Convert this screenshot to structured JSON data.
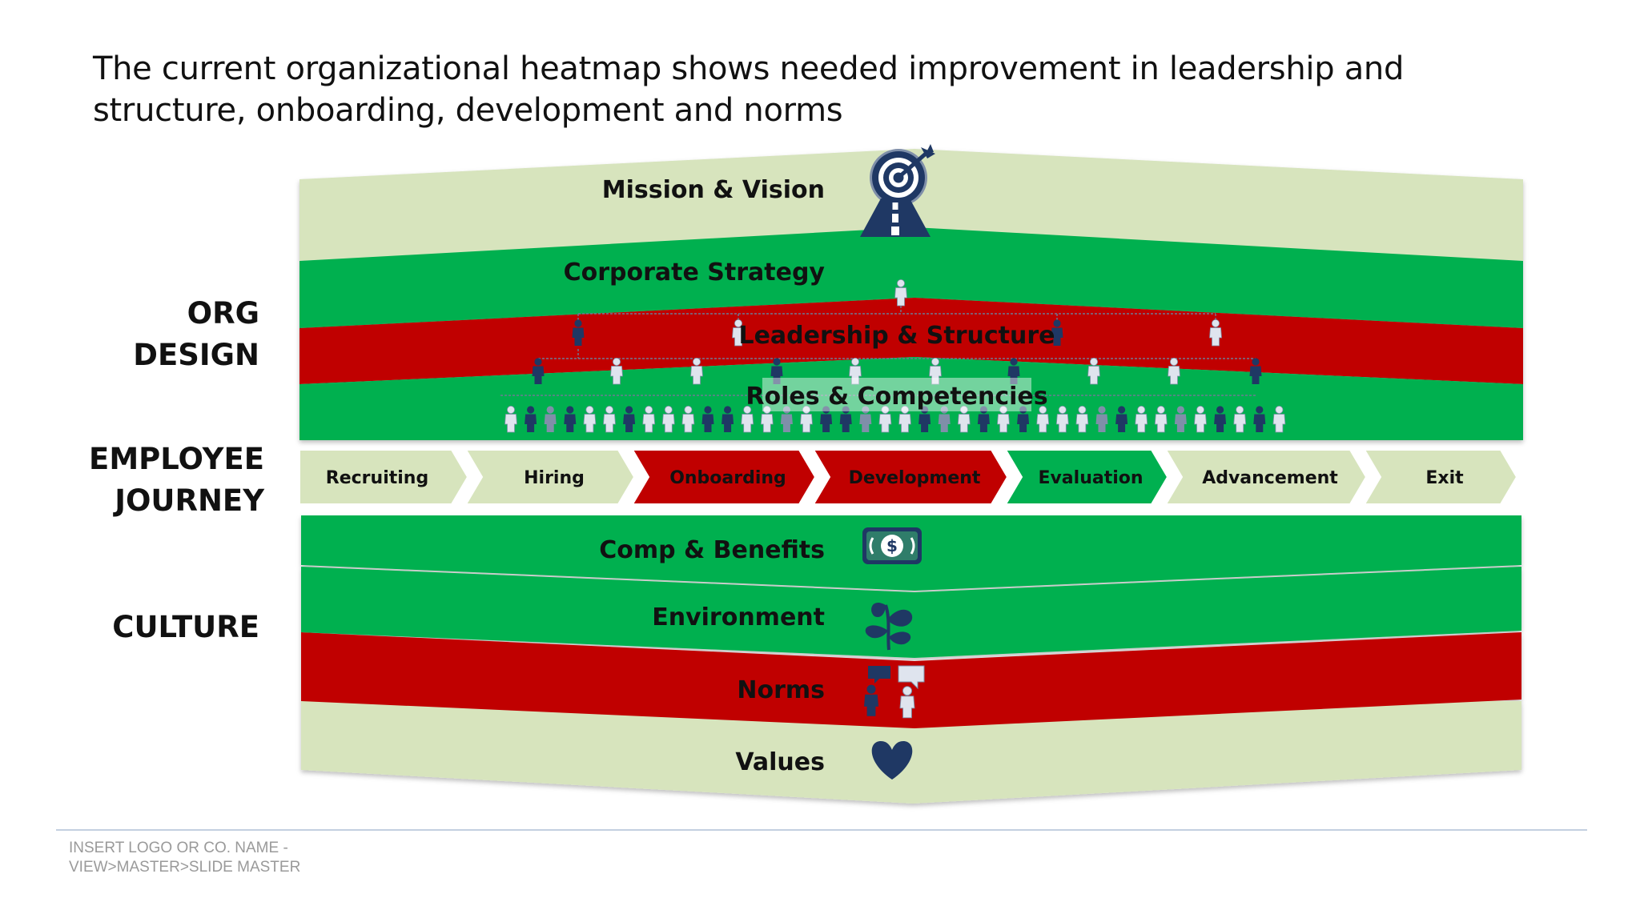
{
  "title": "The current organizational heatmap shows needed improvement in leadership and structure, onboarding, development and norms",
  "side_labels": {
    "org_design": "ORG\nDESIGN",
    "employee_journey": "EMPLOYEE\nJOURNEY",
    "culture": "CULTURE"
  },
  "colors": {
    "light": "#d7e4bd",
    "green": "#00b050",
    "red": "#c00000",
    "navy": "#1f3864",
    "slate": "#7f8fa9",
    "person_light": "#dfe4ee"
  },
  "layers": {
    "mission": {
      "label": "Mission & Vision",
      "status": "light",
      "icon": "target-icon"
    },
    "strategy": {
      "label": "Corporate Strategy",
      "status": "green",
      "icon": "road-icon"
    },
    "leadership": {
      "label": "Leadership & Structure",
      "status": "red",
      "icon": "org-chart-icon"
    },
    "roles": {
      "label": "Roles & Competencies",
      "status": "green",
      "icon": "people-icon"
    },
    "comp": {
      "label": "Comp & Benefits",
      "status": "green",
      "icon": "money-icon"
    },
    "environment": {
      "label": "Environment",
      "status": "green",
      "icon": "plant-icon"
    },
    "norms": {
      "label": "Norms",
      "status": "red",
      "icon": "conversation-icon"
    },
    "values": {
      "label": "Values",
      "status": "light",
      "icon": "heart-icon"
    }
  },
  "journey": [
    {
      "label": "Recruiting",
      "status": "light"
    },
    {
      "label": "Hiring",
      "status": "light"
    },
    {
      "label": "Onboarding",
      "status": "red"
    },
    {
      "label": "Development",
      "status": "red"
    },
    {
      "label": "Evaluation",
      "status": "green"
    },
    {
      "label": "Advancement",
      "status": "light"
    },
    {
      "label": "Exit",
      "status": "light"
    }
  ],
  "footer": {
    "line1": "INSERT LOGO OR CO. NAME -",
    "line2": "VIEW>MASTER>SLIDE MASTER"
  }
}
